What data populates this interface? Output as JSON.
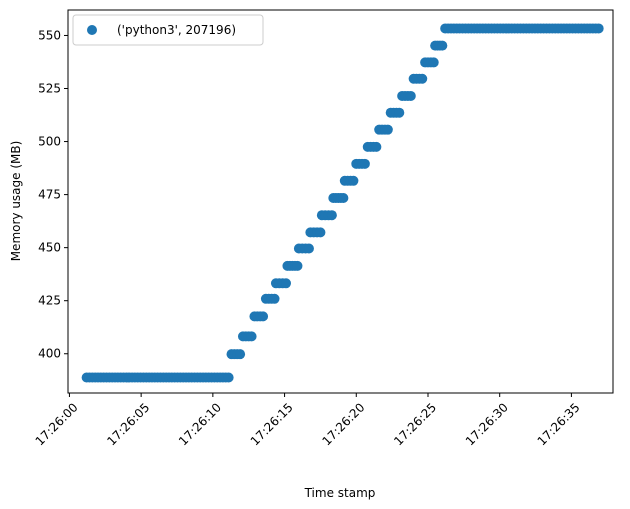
{
  "chart_data": {
    "type": "scatter",
    "xlabel": "Time stamp",
    "ylabel": "Memory usage (MB)",
    "x_tick_labels": [
      "17:26:00",
      "17:26:05",
      "17:26:10",
      "17:26:15",
      "17:26:20",
      "17:26:25",
      "17:26:30",
      "17:26:35"
    ],
    "x_tick_seconds": [
      0,
      5,
      10,
      15,
      20,
      25,
      30,
      35
    ],
    "xlim_seconds": [
      -0.1,
      37.9
    ],
    "y_ticks": [
      400,
      425,
      450,
      475,
      500,
      525,
      550
    ],
    "ylim": [
      381.5,
      562
    ],
    "grid": false,
    "legend_placement": "top-left",
    "series": [
      {
        "name": "('python3', 207196)",
        "color": "#1f77b4",
        "segments": [
          {
            "x_start": 1.2,
            "x_end": 11.1,
            "y": 388.8
          },
          {
            "x_start": 11.3,
            "x_end": 11.9,
            "y": 399.8
          },
          {
            "x_start": 12.1,
            "x_end": 12.7,
            "y": 408.2
          },
          {
            "x_start": 12.9,
            "x_end": 13.5,
            "y": 417.6
          },
          {
            "x_start": 13.7,
            "x_end": 14.3,
            "y": 425.9
          },
          {
            "x_start": 14.4,
            "x_end": 15.1,
            "y": 433.2
          },
          {
            "x_start": 15.2,
            "x_end": 15.9,
            "y": 441.4
          },
          {
            "x_start": 16.0,
            "x_end": 16.7,
            "y": 449.6
          },
          {
            "x_start": 16.8,
            "x_end": 17.5,
            "y": 457.2
          },
          {
            "x_start": 17.6,
            "x_end": 18.3,
            "y": 465.3
          },
          {
            "x_start": 18.4,
            "x_end": 19.1,
            "y": 473.4
          },
          {
            "x_start": 19.2,
            "x_end": 19.8,
            "y": 481.5
          },
          {
            "x_start": 20.0,
            "x_end": 20.6,
            "y": 489.5
          },
          {
            "x_start": 20.8,
            "x_end": 21.4,
            "y": 497.5
          },
          {
            "x_start": 21.6,
            "x_end": 22.2,
            "y": 505.6
          },
          {
            "x_start": 22.4,
            "x_end": 23.0,
            "y": 513.6
          },
          {
            "x_start": 23.2,
            "x_end": 23.8,
            "y": 521.5
          },
          {
            "x_start": 24.0,
            "x_end": 24.6,
            "y": 529.6
          },
          {
            "x_start": 24.8,
            "x_end": 25.4,
            "y": 537.3
          },
          {
            "x_start": 25.5,
            "x_end": 26.0,
            "y": 545.2
          },
          {
            "x_start": 26.2,
            "x_end": 36.9,
            "y": 553.3
          }
        ],
        "point_spacing_seconds": 0.2
      }
    ]
  }
}
